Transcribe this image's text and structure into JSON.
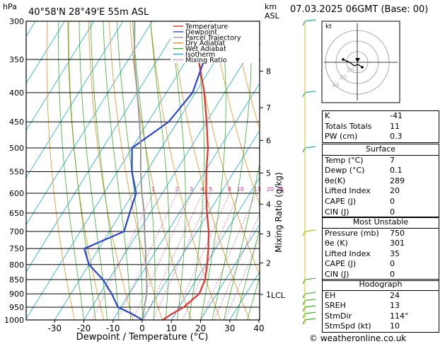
{
  "header": {
    "location": "40°58'N 28°49'E 55m ASL",
    "unit_left": "hPa",
    "unit_right_line1": "km",
    "unit_right_line2": "ASL",
    "datetime": "07.03.2025 06GMT (Base: 00)"
  },
  "footer": {
    "credit": "© weatheronline.co.uk"
  },
  "chart_data": {
    "type": "line",
    "title": "",
    "xlabel": "Dewpoint / Temperature (°C)",
    "ylabel": "",
    "right_label": "Mixing Ratio (g/kg)",
    "xlim": [
      -40,
      40
    ],
    "ylim_hpa": [
      1000,
      300
    ],
    "x_ticks": [
      -30,
      -20,
      -10,
      0,
      10,
      20,
      30,
      40
    ],
    "pressure_ticks": [
      300,
      350,
      400,
      450,
      500,
      550,
      600,
      650,
      700,
      750,
      800,
      850,
      900,
      950,
      1000
    ],
    "km_ticks": [
      {
        "km": "1",
        "p": 902,
        "label": "LCL"
      },
      {
        "km": "2",
        "p": 795
      },
      {
        "km": "3",
        "p": 707
      },
      {
        "km": "4",
        "p": 627
      },
      {
        "km": "5",
        "p": 553
      },
      {
        "km": "6",
        "p": 485
      },
      {
        "km": "7",
        "p": 425
      },
      {
        "km": "8",
        "p": 367
      }
    ],
    "mixing_ratio_labels": [
      "1",
      "2",
      "3",
      "4",
      "5",
      "8",
      "10",
      "15",
      "20",
      "25"
    ],
    "legend": {
      "placement": "top-right",
      "items": [
        {
          "label": "Temperature",
          "color": "#e8302a",
          "dash": false
        },
        {
          "label": "Dewpoint",
          "color": "#2a44d4",
          "dash": false
        },
        {
          "label": "Parcel Trajectory",
          "color": "#9a9a9a",
          "dash": false
        },
        {
          "label": "Dry Adiabat",
          "color": "#e89020",
          "dash": false
        },
        {
          "label": "Wet Adiabat",
          "color": "#3bb02a",
          "dash": false
        },
        {
          "label": "Isotherm",
          "color": "#18a8d8",
          "dash": false
        },
        {
          "label": "Mixing Ratio",
          "color": "#d2309a",
          "dash": true
        }
      ]
    },
    "series": [
      {
        "name": "Temperature",
        "color": "#e8302a",
        "points": [
          [
            1000,
            7
          ],
          [
            975,
            9
          ],
          [
            950,
            11.5
          ],
          [
            900,
            14
          ],
          [
            850,
            13
          ],
          [
            800,
            10.5
          ],
          [
            750,
            7.5
          ],
          [
            700,
            4
          ],
          [
            650,
            -0.5
          ],
          [
            600,
            -5
          ],
          [
            550,
            -9.5
          ],
          [
            500,
            -14
          ],
          [
            450,
            -20
          ],
          [
            400,
            -27
          ],
          [
            350,
            -36
          ],
          [
            300,
            -46
          ]
        ]
      },
      {
        "name": "Dewpoint",
        "color": "#2a44d4",
        "points": [
          [
            1000,
            0.1
          ],
          [
            975,
            -5
          ],
          [
            950,
            -11
          ],
          [
            900,
            -16
          ],
          [
            850,
            -22
          ],
          [
            800,
            -30
          ],
          [
            750,
            -35
          ],
          [
            700,
            -25
          ],
          [
            650,
            -27
          ],
          [
            600,
            -29
          ],
          [
            550,
            -35
          ],
          [
            500,
            -40
          ],
          [
            450,
            -33
          ],
          [
            400,
            -31
          ],
          [
            350,
            -34
          ],
          [
            300,
            -40
          ]
        ]
      },
      {
        "name": "Parcel Trajectory",
        "color": "#9a9a9a",
        "points": [
          [
            1000,
            0.2
          ],
          [
            950,
            -2
          ],
          [
            900,
            -4
          ],
          [
            850,
            -7
          ],
          [
            800,
            -10.5
          ],
          [
            750,
            -14
          ],
          [
            700,
            -18
          ],
          [
            650,
            -22
          ],
          [
            600,
            -27
          ],
          [
            550,
            -32
          ],
          [
            500,
            -37
          ],
          [
            450,
            -43
          ],
          [
            400,
            -50
          ],
          [
            350,
            -58
          ],
          [
            300,
            -66
          ]
        ]
      }
    ],
    "hodograph": {
      "label": "kt",
      "ring_labels": [
        "40",
        "30",
        "20"
      ],
      "storm_motion_deg": 114,
      "storm_speed_kt": 10
    },
    "wind_barb_levels": [
      300,
      400,
      500,
      700,
      850,
      900,
      925,
      950,
      975,
      1000
    ]
  },
  "indices": {
    "top": [
      {
        "label": "K",
        "value": "-41"
      },
      {
        "label": "Totals Totals",
        "value": "11"
      },
      {
        "label": "PW (cm)",
        "value": "0.3"
      }
    ],
    "surface": {
      "title": "Surface",
      "rows": [
        {
          "label": "Temp (°C)",
          "value": "7"
        },
        {
          "label": "Dewp (°C)",
          "value": "0.1"
        },
        {
          "label": "θe(K)",
          "value": "289"
        },
        {
          "label": "Lifted Index",
          "value": "20"
        },
        {
          "label": "CAPE (J)",
          "value": "0"
        },
        {
          "label": "CIN (J)",
          "value": "0"
        }
      ]
    },
    "most_unstable": {
      "title": "Most Unstable",
      "rows": [
        {
          "label": "Pressure (mb)",
          "value": "750"
        },
        {
          "label": "θe (K)",
          "value": "301"
        },
        {
          "label": "Lifted Index",
          "value": "35"
        },
        {
          "label": "CAPE (J)",
          "value": "0"
        },
        {
          "label": "CIN (J)",
          "value": "0"
        }
      ]
    },
    "hodograph": {
      "title": "Hodograph",
      "rows": [
        {
          "label": "EH",
          "value": "24"
        },
        {
          "label": "SREH",
          "value": "13"
        },
        {
          "label": "StmDir",
          "value": "114°"
        },
        {
          "label": "StmSpd (kt)",
          "value": "10"
        }
      ]
    }
  }
}
